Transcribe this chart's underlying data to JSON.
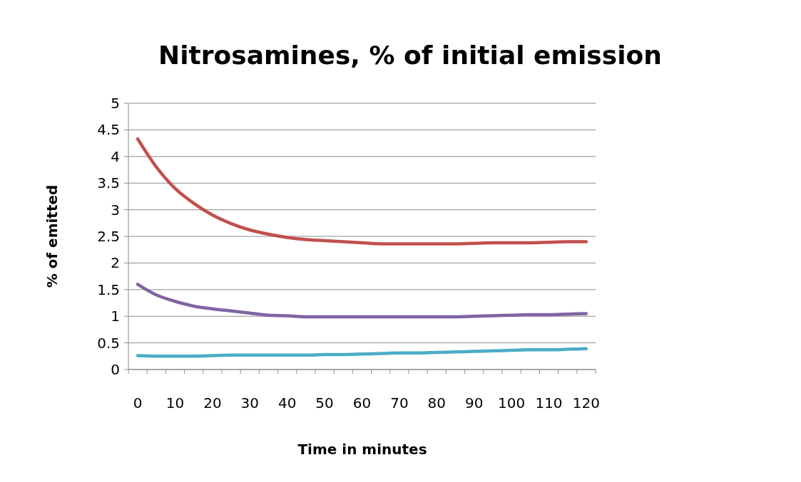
{
  "chart_data": {
    "type": "line",
    "title": "Nitrosamines, % of initial emission",
    "xlabel": "Time in minutes",
    "ylabel": "% of emitted",
    "categories": [
      "0",
      null,
      "10",
      null,
      "20",
      null,
      "30",
      null,
      "40",
      null,
      "50",
      null,
      "60",
      null,
      "70",
      null,
      "80",
      null,
      "90",
      null,
      "100",
      null,
      "110",
      null,
      "120"
    ],
    "series": [
      {
        "color": "#c0504d",
        "values": [
          4.33,
          3.8,
          3.4,
          3.12,
          2.9,
          2.74,
          2.62,
          2.54,
          2.48,
          2.44,
          2.42,
          2.4,
          2.38,
          2.36,
          2.36,
          2.36,
          2.36,
          2.36,
          2.37,
          2.38,
          2.38,
          2.38,
          2.39,
          2.4,
          2.4
        ]
      },
      {
        "color": "#8064a2",
        "values": [
          1.6,
          1.4,
          1.28,
          1.19,
          1.14,
          1.1,
          1.06,
          1.02,
          1.01,
          0.99,
          0.99,
          0.99,
          0.99,
          0.99,
          0.99,
          0.99,
          0.99,
          0.99,
          1.0,
          1.01,
          1.02,
          1.03,
          1.03,
          1.04,
          1.05
        ]
      },
      {
        "color": "#4bacc6",
        "values": [
          0.26,
          0.25,
          0.25,
          0.25,
          0.26,
          0.27,
          0.27,
          0.27,
          0.27,
          0.27,
          0.28,
          0.28,
          0.29,
          0.3,
          0.31,
          0.31,
          0.32,
          0.33,
          0.34,
          0.35,
          0.36,
          0.37,
          0.37,
          0.38,
          0.39
        ]
      }
    ],
    "ylim": [
      0,
      5
    ],
    "yticks": [
      0,
      0.5,
      1,
      1.5,
      2,
      2.5,
      3,
      3.5,
      4,
      4.5,
      5
    ],
    "grid": "y",
    "marker": "none",
    "line_style": "solid"
  }
}
